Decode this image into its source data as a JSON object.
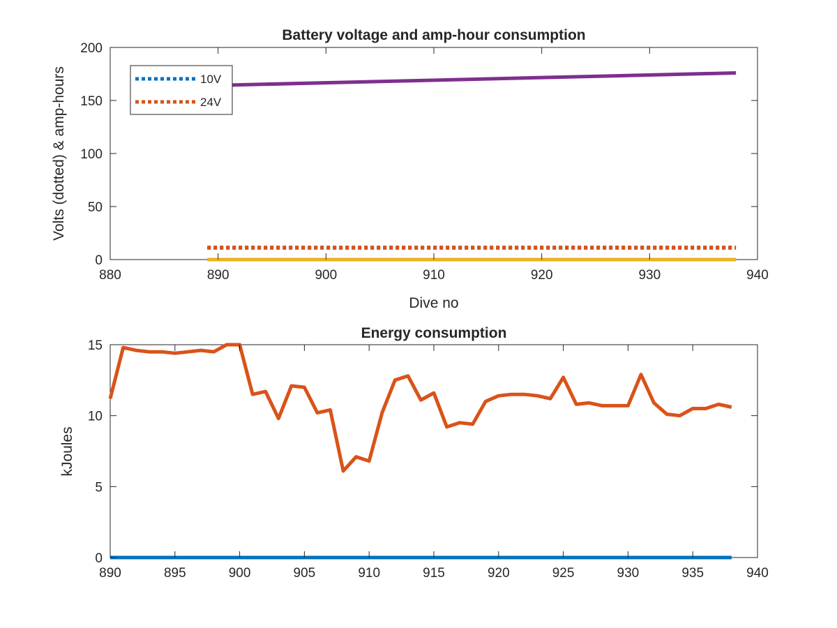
{
  "chart_data": [
    {
      "type": "line",
      "title": "Battery voltage and amp-hour consumption",
      "xlabel": "Dive no",
      "ylabel": "Volts (dotted) & amp-hours",
      "xlim": [
        880,
        940
      ],
      "ylim": [
        0,
        200
      ],
      "xticks": [
        880,
        890,
        900,
        910,
        920,
        930,
        940
      ],
      "yticks": [
        0,
        50,
        100,
        150,
        200
      ],
      "legend_position": "top-left",
      "grid": false,
      "series": [
        {
          "name": "10V",
          "style": "dotted",
          "color": "#0072BD",
          "x": [
            889,
            938
          ],
          "y": [
            11,
            11
          ]
        },
        {
          "name": "24V",
          "style": "dotted",
          "color": "#D95319",
          "x": [
            889,
            938
          ],
          "y": [
            11.5,
            11.5
          ]
        },
        {
          "name": "",
          "style": "solid",
          "color": "#EDB120",
          "x": [
            889,
            938
          ],
          "y": [
            0,
            0
          ]
        },
        {
          "name": "",
          "style": "solid",
          "color": "#7E2F8E",
          "x": [
            889,
            938
          ],
          "y": [
            164,
            176
          ]
        }
      ]
    },
    {
      "type": "line",
      "title": "Energy consumption",
      "xlabel": "",
      "ylabel": "kJoules",
      "xlim": [
        890,
        940
      ],
      "ylim": [
        0,
        15
      ],
      "xticks": [
        890,
        895,
        900,
        905,
        910,
        915,
        920,
        925,
        930,
        935,
        940
      ],
      "yticks": [
        0,
        5,
        10,
        15
      ],
      "grid": false,
      "series": [
        {
          "name": "",
          "style": "solid",
          "color": "#0072BD",
          "x": [
            890,
            938
          ],
          "y": [
            0,
            0
          ]
        },
        {
          "name": "",
          "style": "solid",
          "color": "#D95319",
          "x": [
            890,
            891,
            892,
            893,
            894,
            895,
            896,
            897,
            898,
            899,
            900,
            901,
            902,
            903,
            904,
            905,
            906,
            907,
            908,
            909,
            910,
            911,
            912,
            913,
            914,
            915,
            916,
            917,
            918,
            919,
            920,
            921,
            922,
            923,
            924,
            925,
            926,
            927,
            928,
            929,
            930,
            931,
            932,
            933,
            934,
            935,
            936,
            937,
            938
          ],
          "y": [
            11.2,
            14.8,
            14.6,
            14.5,
            14.5,
            14.4,
            14.5,
            14.6,
            14.5,
            15.0,
            15.0,
            11.5,
            11.7,
            9.8,
            12.1,
            12.0,
            10.2,
            10.4,
            6.1,
            7.1,
            6.8,
            10.2,
            12.5,
            12.8,
            11.1,
            11.6,
            9.2,
            9.5,
            9.4,
            11.0,
            11.4,
            11.5,
            11.5,
            11.4,
            11.2,
            12.7,
            10.8,
            10.9,
            10.7,
            10.7,
            10.7,
            12.9,
            10.9,
            10.1,
            10.0,
            10.5,
            10.5,
            10.8,
            10.6
          ]
        }
      ]
    }
  ]
}
